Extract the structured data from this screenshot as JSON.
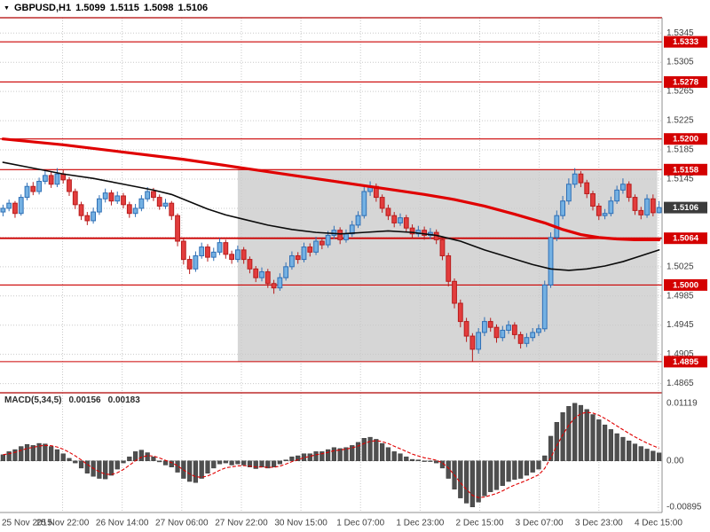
{
  "header": {
    "collapse_icon": "▼",
    "symbol": "GBPUSD,H1",
    "ohlc": [
      "1.5099",
      "1.5115",
      "1.5098",
      "1.5106"
    ]
  },
  "macd_panel": {
    "label": "MACD(5,34,5)",
    "value_main": "0.00156",
    "value_signal": "0.00183"
  },
  "colors": {
    "up_fill": "#74b1e3",
    "up_stroke": "#2e6fb5",
    "down_fill": "#e23d3d",
    "down_stroke": "#b81c1c",
    "zone": "#d6d6d6",
    "grid": "#c9c9c9",
    "level": "#cc0000",
    "badge_bg": "#d40000",
    "badge_text": "#ffffff",
    "current_badge_bg": "#3c3c3c",
    "axis_text": "#3f3f3f",
    "hist_fill": "#4f4f4f",
    "hist_stroke": "#2f2f2f",
    "signal": "#e00000",
    "frame_red": "#b00000",
    "frame_gray": "#8f8f8f"
  },
  "chart_data": {
    "type": "candlestick",
    "title": "GBPUSD,H1",
    "quote": {
      "open": 1.5099,
      "high": 1.5115,
      "low": 1.5098,
      "close": 1.5106
    },
    "price_axis": {
      "min": 1.4856,
      "max": 1.5366,
      "grid_step": 0.004,
      "grid_prices": [
        1.5345,
        1.5305,
        1.5265,
        1.5225,
        1.5185,
        1.5145,
        1.5105,
        1.5065,
        1.5025,
        1.4985,
        1.4945,
        1.4905,
        1.4865
      ],
      "ticks": [
        {
          "text": "1.5345",
          "price": 1.5345
        },
        {
          "text": "1.5305",
          "price": 1.5305
        },
        {
          "text": "1.5265",
          "price": 1.5265
        },
        {
          "text": "1.5225",
          "price": 1.5225
        },
        {
          "text": "1.5185",
          "price": 1.5185
        },
        {
          "text": "1.5145",
          "price": 1.5145
        },
        {
          "text": "1.5025",
          "price": 1.5025
        },
        {
          "text": "1.4985",
          "price": 1.4985
        },
        {
          "text": "1.4945",
          "price": 1.4945
        },
        {
          "text": "1.4905",
          "price": 1.4905
        },
        {
          "text": "1.4865",
          "price": 1.4865
        }
      ]
    },
    "time_axis": {
      "items": [
        {
          "text": "25 Nov 2015",
          "index": 0
        },
        {
          "text": "25 Nov 22:00",
          "index": 9.9
        },
        {
          "text": "26 Nov 14:00",
          "index": 19.8
        },
        {
          "text": "27 Nov 06:00",
          "index": 29.7
        },
        {
          "text": "27 Nov 22:00",
          "index": 39.6
        },
        {
          "text": "30 Nov 15:00",
          "index": 49.5
        },
        {
          "text": "1 Dec 07:00",
          "index": 59.4
        },
        {
          "text": "1 Dec 23:00",
          "index": 69.3
        },
        {
          "text": "2 Dec 15:00",
          "index": 79.2
        },
        {
          "text": "3 Dec 07:00",
          "index": 89.1
        },
        {
          "text": "3 Dec 23:00",
          "index": 99
        },
        {
          "text": "4 Dec 15:00",
          "index": 108.9
        }
      ]
    },
    "levels": [
      {
        "label": "1.5333",
        "price": 1.5333
      },
      {
        "label": "1.5278",
        "price": 1.5278
      },
      {
        "label": "1.5200",
        "price": 1.52
      },
      {
        "label": "1.5158",
        "price": 1.5158
      },
      {
        "label": "1.5064",
        "price": 1.5064,
        "emphasis": true
      },
      {
        "label": "1.5000",
        "price": 1.5
      },
      {
        "label": "1.4895",
        "price": 1.4895
      }
    ],
    "current_price": {
      "price": 1.5106,
      "label": "1.5106"
    },
    "highlight_zone": {
      "from_index": 39.5,
      "to_index": 109.2,
      "top": 1.5158,
      "bottom": 1.4895
    },
    "candles": {
      "first_open": 1.51,
      "close": [
        1.5105,
        1.5112,
        1.5098,
        1.512,
        1.5135,
        1.5128,
        1.5142,
        1.515,
        1.5138,
        1.5152,
        1.5144,
        1.5128,
        1.511,
        1.5095,
        1.5088,
        1.51,
        1.5118,
        1.5126,
        1.5115,
        1.5122,
        1.511,
        1.5098,
        1.5105,
        1.5118,
        1.5128,
        1.512,
        1.5108,
        1.5112,
        1.5095,
        1.506,
        1.5035,
        1.5022,
        1.504,
        1.5052,
        1.5038,
        1.5045,
        1.5058,
        1.5042,
        1.5035,
        1.5048,
        1.5035,
        1.5022,
        1.501,
        1.5018,
        1.5002,
        1.4996,
        1.501,
        1.5025,
        1.504,
        1.5035,
        1.5052,
        1.5045,
        1.506,
        1.5055,
        1.5068,
        1.5075,
        1.5062,
        1.507,
        1.5082,
        1.5095,
        1.5128,
        1.5135,
        1.512,
        1.5105,
        1.5095,
        1.5085,
        1.5092,
        1.5078,
        1.507,
        1.5075,
        1.5068,
        1.5072,
        1.5062,
        1.504,
        1.5005,
        1.4975,
        1.495,
        1.493,
        1.4912,
        1.4935,
        1.495,
        1.4942,
        1.4928,
        1.4938,
        1.4945,
        1.4932,
        1.492,
        1.4928,
        1.4935,
        1.494,
        1.5,
        1.5065,
        1.5095,
        1.5115,
        1.5138,
        1.5152,
        1.514,
        1.5125,
        1.5108,
        1.5095,
        1.5098,
        1.5115,
        1.513,
        1.5138,
        1.512,
        1.5102,
        1.5096,
        1.5118,
        1.5099,
        1.5106
      ],
      "high": [
        1.511,
        1.5117,
        1.5115,
        1.5124,
        1.514,
        1.5141,
        1.5147,
        1.5157,
        1.5155,
        1.516,
        1.5158,
        1.5148,
        1.5132,
        1.5114,
        1.51,
        1.5106,
        1.5123,
        1.5132,
        1.513,
        1.5128,
        1.5126,
        1.5114,
        1.5111,
        1.5123,
        1.5134,
        1.5133,
        1.5124,
        1.5118,
        1.5115,
        1.5098,
        1.5064,
        1.504,
        1.5046,
        1.5058,
        1.5056,
        1.5051,
        1.5064,
        1.5062,
        1.5047,
        1.5054,
        1.5052,
        1.5039,
        1.5026,
        1.5024,
        1.5022,
        1.5007,
        1.5016,
        1.5031,
        1.5046,
        1.5045,
        1.5058,
        1.5057,
        1.5066,
        1.5065,
        1.5074,
        1.5081,
        1.5079,
        1.5076,
        1.5088,
        1.5101,
        1.5134,
        1.5142,
        1.5139,
        1.5124,
        1.511,
        1.51,
        1.5098,
        1.5096,
        1.5083,
        1.5081,
        1.508,
        1.5078,
        1.5076,
        1.5066,
        1.5044,
        1.5009,
        1.498,
        1.4955,
        1.4934,
        1.4941,
        1.4956,
        1.4955,
        1.4946,
        1.4944,
        1.4951,
        1.4949,
        1.4936,
        1.4934,
        1.4941,
        1.4946,
        1.5006,
        1.5072,
        1.5102,
        1.5122,
        1.5146,
        1.516,
        1.5156,
        1.5144,
        1.5129,
        1.5112,
        1.5104,
        1.5121,
        1.5136,
        1.5146,
        1.5142,
        1.5124,
        1.5107,
        1.5124,
        1.5124,
        1.5115
      ],
      "low": [
        1.5094,
        1.5101,
        1.5092,
        1.5095,
        1.5116,
        1.5123,
        1.5124,
        1.5138,
        1.5133,
        1.5134,
        1.5139,
        1.5122,
        1.5104,
        1.5089,
        1.5082,
        1.5084,
        1.5096,
        1.5113,
        1.5109,
        1.5111,
        1.5105,
        1.5092,
        1.5093,
        1.5101,
        1.5114,
        1.5115,
        1.5103,
        1.5104,
        1.5089,
        1.5053,
        1.5028,
        1.5015,
        1.5018,
        1.5036,
        1.5032,
        1.5033,
        1.5041,
        1.5036,
        1.5029,
        1.5031,
        1.5029,
        1.5016,
        1.5004,
        1.5005,
        1.4996,
        1.4988,
        1.4992,
        1.5006,
        1.5021,
        1.5029,
        1.5031,
        1.5039,
        1.5041,
        1.5049,
        1.5051,
        1.5063,
        1.5056,
        1.5058,
        1.5066,
        1.5078,
        1.5091,
        1.5122,
        1.5114,
        1.5099,
        1.5089,
        1.5079,
        1.5081,
        1.5072,
        1.5064,
        1.5066,
        1.5062,
        1.5063,
        1.5056,
        1.5034,
        1.4998,
        1.4968,
        1.4942,
        1.4922,
        1.4895,
        1.4906,
        1.493,
        1.4936,
        1.4921,
        1.4923,
        1.4933,
        1.4926,
        1.4913,
        1.4915,
        1.4923,
        1.493,
        1.4936,
        1.4996,
        1.506,
        1.509,
        1.511,
        1.5133,
        1.5134,
        1.5119,
        1.5102,
        1.5089,
        1.509,
        1.5094,
        1.5111,
        1.5125,
        1.5114,
        1.5096,
        1.509,
        1.5092,
        1.5094,
        1.5098
      ]
    },
    "overlays": [
      {
        "name": "ma-slow-red",
        "color": "#e00000",
        "width": 3.2,
        "points": [
          [
            0,
            1.52
          ],
          [
            10,
            1.5192
          ],
          [
            20,
            1.5182
          ],
          [
            30,
            1.5172
          ],
          [
            40,
            1.516
          ],
          [
            50,
            1.5148
          ],
          [
            55,
            1.5142
          ],
          [
            60,
            1.5136
          ],
          [
            65,
            1.513
          ],
          [
            70,
            1.5124
          ],
          [
            75,
            1.5117
          ],
          [
            80,
            1.5108
          ],
          [
            85,
            1.5097
          ],
          [
            90,
            1.5085
          ],
          [
            93,
            1.5076
          ],
          [
            96,
            1.5069
          ],
          [
            99,
            1.5065
          ],
          [
            102,
            1.5063
          ],
          [
            105,
            1.5062
          ],
          [
            109,
            1.5062
          ]
        ]
      },
      {
        "name": "ma-fast-black",
        "color": "#0a0a0a",
        "width": 1.6,
        "points": [
          [
            0,
            1.5168
          ],
          [
            5,
            1.516
          ],
          [
            10,
            1.5152
          ],
          [
            15,
            1.5146
          ],
          [
            20,
            1.5138
          ],
          [
            25,
            1.513
          ],
          [
            28,
            1.5124
          ],
          [
            31,
            1.5114
          ],
          [
            34,
            1.5104
          ],
          [
            37,
            1.5096
          ],
          [
            40,
            1.509
          ],
          [
            44,
            1.5082
          ],
          [
            48,
            1.5076
          ],
          [
            52,
            1.5072
          ],
          [
            56,
            1.507
          ],
          [
            60,
            1.5072
          ],
          [
            64,
            1.5074
          ],
          [
            68,
            1.5072
          ],
          [
            72,
            1.5068
          ],
          [
            76,
            1.506
          ],
          [
            80,
            1.5048
          ],
          [
            84,
            1.5038
          ],
          [
            88,
            1.5028
          ],
          [
            91,
            1.5022
          ],
          [
            94,
            1.502
          ],
          [
            97,
            1.5022
          ],
          [
            100,
            1.5026
          ],
          [
            103,
            1.5032
          ],
          [
            106,
            1.504
          ],
          [
            109,
            1.5048
          ]
        ]
      }
    ],
    "macd": {
      "label": "MACD(5,34,5)",
      "value_main": 0.00156,
      "value_signal": 0.00183,
      "signal_period": 5,
      "axis": {
        "max": 0.0115,
        "min": -0.0095,
        "labels": [
          {
            "text": "0.01119",
            "value": 0.01119
          },
          {
            "text": "0.00",
            "value": 0
          },
          {
            "text": "-0.00895",
            "value": -0.00895
          }
        ]
      },
      "values": [
        0.0012,
        0.0018,
        0.0022,
        0.0028,
        0.0032,
        0.003,
        0.0034,
        0.0033,
        0.0028,
        0.0022,
        0.0014,
        0.0005,
        -0.0004,
        -0.0014,
        -0.0024,
        -0.003,
        -0.0034,
        -0.0035,
        -0.0028,
        -0.0016,
        -0.0004,
        0.0008,
        0.0018,
        0.0021,
        0.0016,
        0.0008,
        -0.0002,
        -0.0008,
        -0.0012,
        -0.0022,
        -0.0034,
        -0.004,
        -0.0042,
        -0.0034,
        -0.0024,
        -0.0014,
        -0.0006,
        -0.0004,
        -0.0008,
        -0.0006,
        -0.0008,
        -0.0012,
        -0.0015,
        -0.0012,
        -0.0014,
        -0.0012,
        -0.0006,
        0.0002,
        0.0008,
        0.001,
        0.0014,
        0.0014,
        0.0018,
        0.0018,
        0.0022,
        0.0026,
        0.0024,
        0.0026,
        0.003,
        0.0036,
        0.0044,
        0.0046,
        0.0042,
        0.0034,
        0.0026,
        0.0018,
        0.0014,
        0.0008,
        0.0003,
        0.0002,
        -0.0001,
        0.0,
        -0.0004,
        -0.0014,
        -0.0034,
        -0.0055,
        -0.0072,
        -0.0082,
        -0.00895,
        -0.008,
        -0.0068,
        -0.006,
        -0.0056,
        -0.0048,
        -0.004,
        -0.0036,
        -0.0034,
        -0.0028,
        -0.0022,
        -0.0016,
        0.001,
        0.0048,
        0.0075,
        0.0094,
        0.0106,
        0.01119,
        0.0108,
        0.01,
        0.009,
        0.008,
        0.007,
        0.0061,
        0.0053,
        0.0046,
        0.0039,
        0.0033,
        0.0028,
        0.0023,
        0.0019,
        0.00156
      ]
    }
  }
}
